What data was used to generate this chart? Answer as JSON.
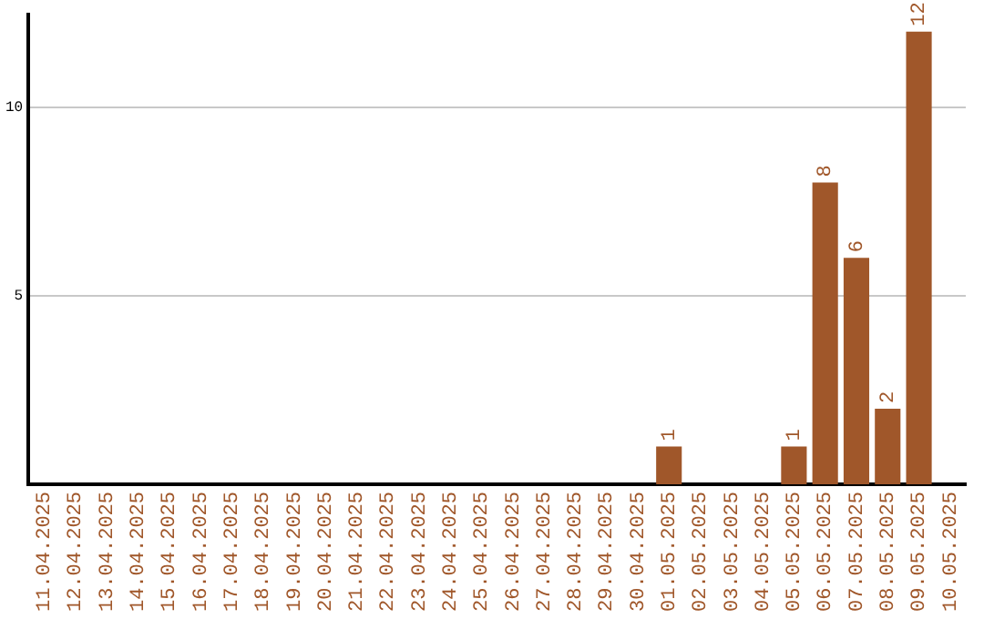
{
  "chart_data": {
    "type": "bar",
    "categories": [
      "11.04.2025",
      "12.04.2025",
      "13.04.2025",
      "14.04.2025",
      "15.04.2025",
      "16.04.2025",
      "17.04.2025",
      "18.04.2025",
      "19.04.2025",
      "20.04.2025",
      "21.04.2025",
      "22.04.2025",
      "23.04.2025",
      "24.04.2025",
      "25.04.2025",
      "26.04.2025",
      "27.04.2025",
      "28.04.2025",
      "29.04.2025",
      "30.04.2025",
      "01.05.2025",
      "02.05.2025",
      "03.05.2025",
      "04.05.2025",
      "05.05.2025",
      "06.05.2025",
      "07.05.2025",
      "08.05.2025",
      "09.05.2025",
      "10.05.2025"
    ],
    "values": [
      0,
      0,
      0,
      0,
      0,
      0,
      0,
      0,
      0,
      0,
      0,
      0,
      0,
      0,
      0,
      0,
      0,
      0,
      0,
      0,
      1,
      0,
      0,
      0,
      1,
      8,
      6,
      2,
      12,
      0
    ],
    "value_labels": [
      null,
      null,
      null,
      null,
      null,
      null,
      null,
      null,
      null,
      null,
      null,
      null,
      null,
      null,
      null,
      null,
      null,
      null,
      null,
      null,
      "1",
      null,
      null,
      null,
      "1",
      "8",
      "6",
      "2",
      "12",
      null
    ],
    "color": "#a0572a",
    "ylim": [
      0,
      12.45
    ],
    "yticks": [
      5,
      10
    ],
    "grid": "y"
  }
}
